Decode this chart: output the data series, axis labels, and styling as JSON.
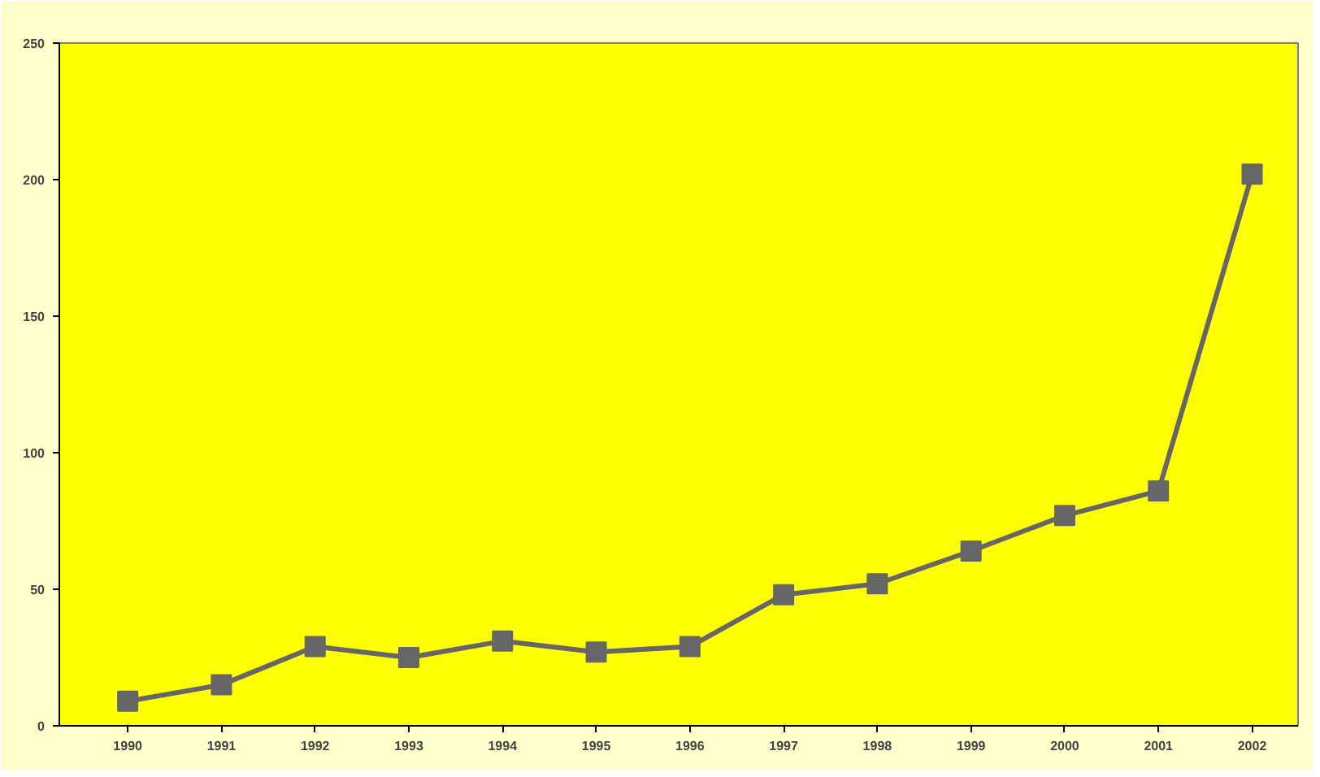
{
  "chart_data": {
    "type": "line",
    "categories": [
      "1990",
      "1991",
      "1992",
      "1993",
      "1994",
      "1995",
      "1996",
      "1997",
      "1998",
      "1999",
      "2000",
      "2001",
      "2002"
    ],
    "series": [
      {
        "color": "#666666",
        "values": [
          9,
          15,
          29,
          25,
          31,
          27,
          29,
          48,
          52,
          64,
          77,
          86,
          202
        ]
      }
    ],
    "ylim": [
      0,
      250
    ],
    "yticks": [
      0,
      50,
      100,
      150,
      200,
      250
    ],
    "grid": false,
    "marker": "square",
    "line_style": "solid"
  }
}
